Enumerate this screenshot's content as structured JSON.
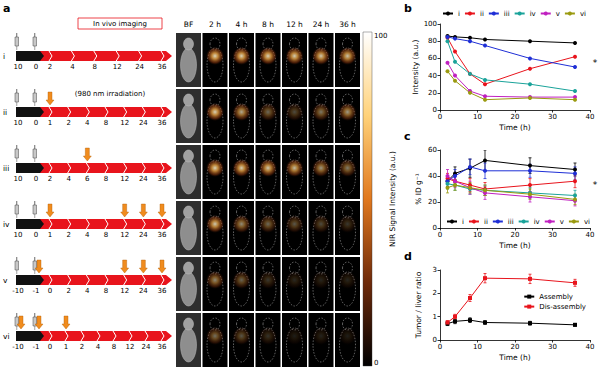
{
  "panel_a": {
    "label": "a",
    "imaging_label": "In vivo imaging",
    "irradiation_label": "(980 nm irradiation)",
    "columns": [
      "BF",
      "2 h",
      "4 h",
      "8 h",
      "12 h",
      "24 h",
      "36 h"
    ],
    "rows": [
      {
        "label": "i",
        "timeline": [
          10,
          0,
          2,
          4,
          8,
          12,
          24,
          36
        ],
        "irradiation": []
      },
      {
        "label": "ii",
        "timeline": [
          10,
          0,
          1,
          2,
          4,
          8,
          12,
          24,
          36
        ],
        "irradiation": [
          1
        ]
      },
      {
        "label": "iii",
        "timeline": [
          10,
          0,
          2,
          4,
          6,
          8,
          12,
          24,
          36
        ],
        "irradiation": [
          6
        ]
      },
      {
        "label": "iv",
        "timeline": [
          10,
          0,
          1,
          2,
          4,
          8,
          12,
          24,
          36
        ],
        "irradiation": [
          1,
          12,
          24,
          36
        ]
      },
      {
        "label": "v",
        "timeline": [
          -10,
          -1,
          0,
          2,
          4,
          8,
          12,
          24,
          36
        ],
        "irradiation": [
          -1,
          12,
          24,
          36
        ]
      },
      {
        "label": "vi",
        "timeline": [
          -10,
          -1,
          0,
          1,
          2,
          4,
          8,
          12,
          24,
          36
        ],
        "irradiation": [
          -10,
          -1,
          1
        ]
      }
    ],
    "colorbar": {
      "title": "NIR Signal Intensity (a.u.)",
      "range": [
        0,
        100
      ],
      "ticks": [
        0,
        100
      ]
    }
  },
  "chart_data": [
    {
      "label": "b",
      "type": "line",
      "x_label": "Time (h)",
      "y_label": "Intensity (a.u.)",
      "x": [
        2,
        4,
        8,
        12,
        24,
        36
      ],
      "xlim": [
        0,
        40
      ],
      "xticks": [
        0,
        10,
        20,
        30,
        40
      ],
      "ylim": [
        0,
        100
      ],
      "yticks": [
        0,
        20,
        40,
        60,
        80,
        100
      ],
      "grid": false,
      "marker": "circle",
      "legend": "top",
      "annotation": "*",
      "series": [
        {
          "name": "i",
          "color": "#000000",
          "values": [
            86,
            85,
            84,
            82,
            80,
            78
          ]
        },
        {
          "name": "ii",
          "color": "#e8141c",
          "values": [
            84,
            68,
            42,
            30,
            48,
            62
          ]
        },
        {
          "name": "iii",
          "color": "#1f2fd6",
          "values": [
            85,
            83,
            80,
            75,
            60,
            50
          ]
        },
        {
          "name": "iv",
          "color": "#1aa39a",
          "values": [
            80,
            56,
            42,
            35,
            30,
            22
          ]
        },
        {
          "name": "v",
          "color": "#c020c0",
          "values": [
            55,
            40,
            22,
            16,
            15,
            15
          ]
        },
        {
          "name": "vi",
          "color": "#9a9a10",
          "values": [
            45,
            34,
            20,
            12,
            14,
            12
          ]
        }
      ]
    },
    {
      "label": "c",
      "type": "line",
      "x_label": "Time (h)",
      "y_label": "% ID g⁻¹",
      "x": [
        2,
        4,
        8,
        12,
        24,
        36
      ],
      "xlim": [
        0,
        40
      ],
      "xticks": [
        0,
        10,
        20,
        30,
        40
      ],
      "ylim": [
        0,
        60
      ],
      "yticks": [
        0,
        20,
        40,
        60
      ],
      "grid": false,
      "marker": "circle",
      "legend": "bottom",
      "annotation": "*",
      "series": [
        {
          "name": "i",
          "color": "#000000",
          "values": [
            36,
            42,
            46,
            52,
            48,
            45
          ],
          "errors": [
            4,
            5,
            7,
            8,
            6,
            5
          ]
        },
        {
          "name": "ii",
          "color": "#e8141c",
          "values": [
            38,
            36,
            33,
            30,
            33,
            36
          ],
          "errors": [
            4,
            4,
            5,
            5,
            5,
            5
          ]
        },
        {
          "name": "iii",
          "color": "#1f2fd6",
          "values": [
            36,
            40,
            47,
            44,
            44,
            42
          ],
          "errors": [
            4,
            5,
            6,
            6,
            5,
            5
          ]
        },
        {
          "name": "iv",
          "color": "#1aa39a",
          "values": [
            34,
            33,
            30,
            29,
            27,
            25
          ],
          "errors": [
            4,
            4,
            4,
            4,
            4,
            4
          ]
        },
        {
          "name": "v",
          "color": "#c020c0",
          "values": [
            40,
            36,
            31,
            27,
            24,
            21
          ],
          "errors": [
            5,
            5,
            5,
            5,
            4,
            4
          ]
        },
        {
          "name": "vi",
          "color": "#9a9a10",
          "values": [
            31,
            33,
            31,
            29,
            26,
            22
          ],
          "errors": [
            4,
            4,
            4,
            4,
            4,
            4
          ]
        }
      ]
    },
    {
      "label": "d",
      "type": "line",
      "x_label": "Time (h)",
      "y_label": "Tumor / liver ratio",
      "x": [
        2,
        4,
        8,
        12,
        24,
        36
      ],
      "xlim": [
        0,
        40
      ],
      "xticks": [
        0,
        10,
        20,
        30,
        40
      ],
      "ylim": [
        0,
        3
      ],
      "yticks": [
        0,
        1,
        2,
        3
      ],
      "grid": false,
      "marker": "rect",
      "legend": "right",
      "series": [
        {
          "name": "Assembly",
          "color": "#000000",
          "values": [
            0.7,
            0.8,
            0.85,
            0.75,
            0.72,
            0.65
          ],
          "errors": [
            0.08,
            0.1,
            0.1,
            0.08,
            0.08,
            0.06
          ]
        },
        {
          "name": "Dis-assembly",
          "color": "#e8141c",
          "values": [
            0.75,
            1.0,
            1.8,
            2.65,
            2.62,
            2.45
          ],
          "errors": [
            0.08,
            0.1,
            0.15,
            0.2,
            0.2,
            0.15
          ]
        }
      ]
    }
  ]
}
